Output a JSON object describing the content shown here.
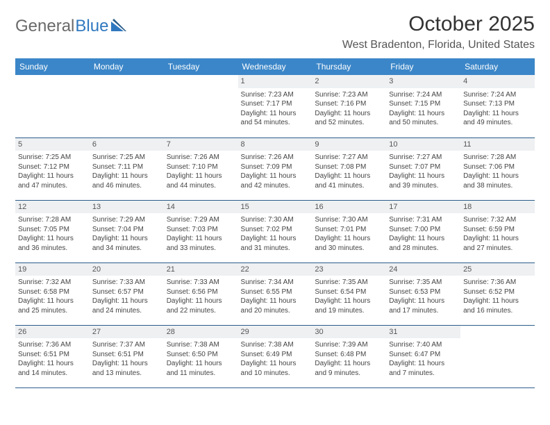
{
  "logo": {
    "word1": "General",
    "word2": "Blue"
  },
  "header": {
    "month_title": "October 2025",
    "location": "West Bradenton, Florida, United States"
  },
  "day_names": [
    "Sunday",
    "Monday",
    "Tuesday",
    "Wednesday",
    "Thursday",
    "Friday",
    "Saturday"
  ],
  "colors": {
    "header_bg": "#3b86c8",
    "header_text": "#ffffff",
    "rule": "#2a5d8a",
    "daynum_bg": "#eef0f2",
    "logo_gray": "#6a6a6a",
    "logo_blue": "#2f78bf"
  },
  "weeks": [
    [
      null,
      null,
      null,
      {
        "n": "1",
        "sunrise": "Sunrise: 7:23 AM",
        "sunset": "Sunset: 7:17 PM",
        "daylight1": "Daylight: 11 hours",
        "daylight2": "and 54 minutes."
      },
      {
        "n": "2",
        "sunrise": "Sunrise: 7:23 AM",
        "sunset": "Sunset: 7:16 PM",
        "daylight1": "Daylight: 11 hours",
        "daylight2": "and 52 minutes."
      },
      {
        "n": "3",
        "sunrise": "Sunrise: 7:24 AM",
        "sunset": "Sunset: 7:15 PM",
        "daylight1": "Daylight: 11 hours",
        "daylight2": "and 50 minutes."
      },
      {
        "n": "4",
        "sunrise": "Sunrise: 7:24 AM",
        "sunset": "Sunset: 7:13 PM",
        "daylight1": "Daylight: 11 hours",
        "daylight2": "and 49 minutes."
      }
    ],
    [
      {
        "n": "5",
        "sunrise": "Sunrise: 7:25 AM",
        "sunset": "Sunset: 7:12 PM",
        "daylight1": "Daylight: 11 hours",
        "daylight2": "and 47 minutes."
      },
      {
        "n": "6",
        "sunrise": "Sunrise: 7:25 AM",
        "sunset": "Sunset: 7:11 PM",
        "daylight1": "Daylight: 11 hours",
        "daylight2": "and 46 minutes."
      },
      {
        "n": "7",
        "sunrise": "Sunrise: 7:26 AM",
        "sunset": "Sunset: 7:10 PM",
        "daylight1": "Daylight: 11 hours",
        "daylight2": "and 44 minutes."
      },
      {
        "n": "8",
        "sunrise": "Sunrise: 7:26 AM",
        "sunset": "Sunset: 7:09 PM",
        "daylight1": "Daylight: 11 hours",
        "daylight2": "and 42 minutes."
      },
      {
        "n": "9",
        "sunrise": "Sunrise: 7:27 AM",
        "sunset": "Sunset: 7:08 PM",
        "daylight1": "Daylight: 11 hours",
        "daylight2": "and 41 minutes."
      },
      {
        "n": "10",
        "sunrise": "Sunrise: 7:27 AM",
        "sunset": "Sunset: 7:07 PM",
        "daylight1": "Daylight: 11 hours",
        "daylight2": "and 39 minutes."
      },
      {
        "n": "11",
        "sunrise": "Sunrise: 7:28 AM",
        "sunset": "Sunset: 7:06 PM",
        "daylight1": "Daylight: 11 hours",
        "daylight2": "and 38 minutes."
      }
    ],
    [
      {
        "n": "12",
        "sunrise": "Sunrise: 7:28 AM",
        "sunset": "Sunset: 7:05 PM",
        "daylight1": "Daylight: 11 hours",
        "daylight2": "and 36 minutes."
      },
      {
        "n": "13",
        "sunrise": "Sunrise: 7:29 AM",
        "sunset": "Sunset: 7:04 PM",
        "daylight1": "Daylight: 11 hours",
        "daylight2": "and 34 minutes."
      },
      {
        "n": "14",
        "sunrise": "Sunrise: 7:29 AM",
        "sunset": "Sunset: 7:03 PM",
        "daylight1": "Daylight: 11 hours",
        "daylight2": "and 33 minutes."
      },
      {
        "n": "15",
        "sunrise": "Sunrise: 7:30 AM",
        "sunset": "Sunset: 7:02 PM",
        "daylight1": "Daylight: 11 hours",
        "daylight2": "and 31 minutes."
      },
      {
        "n": "16",
        "sunrise": "Sunrise: 7:30 AM",
        "sunset": "Sunset: 7:01 PM",
        "daylight1": "Daylight: 11 hours",
        "daylight2": "and 30 minutes."
      },
      {
        "n": "17",
        "sunrise": "Sunrise: 7:31 AM",
        "sunset": "Sunset: 7:00 PM",
        "daylight1": "Daylight: 11 hours",
        "daylight2": "and 28 minutes."
      },
      {
        "n": "18",
        "sunrise": "Sunrise: 7:32 AM",
        "sunset": "Sunset: 6:59 PM",
        "daylight1": "Daylight: 11 hours",
        "daylight2": "and 27 minutes."
      }
    ],
    [
      {
        "n": "19",
        "sunrise": "Sunrise: 7:32 AM",
        "sunset": "Sunset: 6:58 PM",
        "daylight1": "Daylight: 11 hours",
        "daylight2": "and 25 minutes."
      },
      {
        "n": "20",
        "sunrise": "Sunrise: 7:33 AM",
        "sunset": "Sunset: 6:57 PM",
        "daylight1": "Daylight: 11 hours",
        "daylight2": "and 24 minutes."
      },
      {
        "n": "21",
        "sunrise": "Sunrise: 7:33 AM",
        "sunset": "Sunset: 6:56 PM",
        "daylight1": "Daylight: 11 hours",
        "daylight2": "and 22 minutes."
      },
      {
        "n": "22",
        "sunrise": "Sunrise: 7:34 AM",
        "sunset": "Sunset: 6:55 PM",
        "daylight1": "Daylight: 11 hours",
        "daylight2": "and 20 minutes."
      },
      {
        "n": "23",
        "sunrise": "Sunrise: 7:35 AM",
        "sunset": "Sunset: 6:54 PM",
        "daylight1": "Daylight: 11 hours",
        "daylight2": "and 19 minutes."
      },
      {
        "n": "24",
        "sunrise": "Sunrise: 7:35 AM",
        "sunset": "Sunset: 6:53 PM",
        "daylight1": "Daylight: 11 hours",
        "daylight2": "and 17 minutes."
      },
      {
        "n": "25",
        "sunrise": "Sunrise: 7:36 AM",
        "sunset": "Sunset: 6:52 PM",
        "daylight1": "Daylight: 11 hours",
        "daylight2": "and 16 minutes."
      }
    ],
    [
      {
        "n": "26",
        "sunrise": "Sunrise: 7:36 AM",
        "sunset": "Sunset: 6:51 PM",
        "daylight1": "Daylight: 11 hours",
        "daylight2": "and 14 minutes."
      },
      {
        "n": "27",
        "sunrise": "Sunrise: 7:37 AM",
        "sunset": "Sunset: 6:51 PM",
        "daylight1": "Daylight: 11 hours",
        "daylight2": "and 13 minutes."
      },
      {
        "n": "28",
        "sunrise": "Sunrise: 7:38 AM",
        "sunset": "Sunset: 6:50 PM",
        "daylight1": "Daylight: 11 hours",
        "daylight2": "and 11 minutes."
      },
      {
        "n": "29",
        "sunrise": "Sunrise: 7:38 AM",
        "sunset": "Sunset: 6:49 PM",
        "daylight1": "Daylight: 11 hours",
        "daylight2": "and 10 minutes."
      },
      {
        "n": "30",
        "sunrise": "Sunrise: 7:39 AM",
        "sunset": "Sunset: 6:48 PM",
        "daylight1": "Daylight: 11 hours",
        "daylight2": "and 9 minutes."
      },
      {
        "n": "31",
        "sunrise": "Sunrise: 7:40 AM",
        "sunset": "Sunset: 6:47 PM",
        "daylight1": "Daylight: 11 hours",
        "daylight2": "and 7 minutes."
      },
      null
    ]
  ]
}
